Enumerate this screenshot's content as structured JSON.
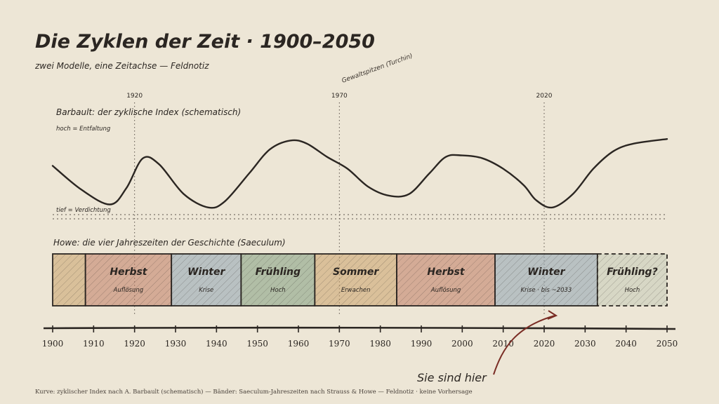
{
  "title": "Die Zyklen der Zeit · 1900–2050",
  "subtitle": "zwei Modelle, eine Zeitachse — Feldnotiz",
  "marker_note": "Gewaltspitzen (Turchin)",
  "markers": [
    1920,
    1970,
    2020
  ],
  "curve": {
    "title": "Barbault: der zyklische Index (schematisch)",
    "high_label": "hoch = Entfaltung",
    "low_label": "tief = Verdichtung"
  },
  "bands": {
    "title": "Howe: die vier Jahreszeiten der Geschichte (Saeculum)",
    "items": [
      {
        "start": 1900,
        "end": 1908,
        "name": "",
        "sub": "",
        "color": "#c9a06a",
        "dashed": false
      },
      {
        "start": 1908,
        "end": 1929,
        "name": "Herbst",
        "sub": "Auflösung",
        "color": "#c07a62",
        "dashed": false
      },
      {
        "start": 1929,
        "end": 1946,
        "name": "Winter",
        "sub": "Krise",
        "color": "#8ea3b3",
        "dashed": false
      },
      {
        "start": 1946,
        "end": 1964,
        "name": "Frühling",
        "sub": "Hoch",
        "color": "#7f9c80",
        "dashed": false
      },
      {
        "start": 1964,
        "end": 1984,
        "name": "Sommer",
        "sub": "Erwachen",
        "color": "#caa069",
        "dashed": false
      },
      {
        "start": 1984,
        "end": 2008,
        "name": "Herbst",
        "sub": "Auflösung",
        "color": "#c07a62",
        "dashed": false
      },
      {
        "start": 2008,
        "end": 2033,
        "name": "Winter",
        "sub": "Krise · bis ~2033",
        "color": "#8ea3b3",
        "dashed": false
      },
      {
        "start": 2033,
        "end": 2050,
        "name": "Frühling?",
        "sub": "Hoch",
        "color": "#9fb09a",
        "dashed": true
      }
    ]
  },
  "axis": {
    "ticks": [
      "1900",
      "1910",
      "1920",
      "1930",
      "1940",
      "1950",
      "1960",
      "1970",
      "1980",
      "1990",
      "2000",
      "2010",
      "2020",
      "2030",
      "2040",
      "2050"
    ]
  },
  "here_label": "Sie sind hier",
  "footer": "Kurve: zyklischer Index nach A. Barbault (schematisch) — Bänder: Saeculum-Jahreszeiten nach Strauss & Howe — Feldnotiz · keine Vorhersage",
  "chart_data": {
    "type": "line",
    "x": [
      1900,
      1907,
      1914,
      1918,
      1922,
      1926,
      1932,
      1938,
      1942,
      1948,
      1953,
      1958,
      1962,
      1967,
      1972,
      1977,
      1982,
      1987,
      1992,
      1996,
      2000,
      2005,
      2010,
      2015,
      2018,
      2022,
      2027,
      2032,
      2037,
      2042,
      2050
    ],
    "values": [
      60,
      28,
      8,
      30,
      70,
      62,
      22,
      4,
      12,
      50,
      82,
      94,
      90,
      72,
      56,
      32,
      20,
      22,
      50,
      72,
      74,
      70,
      56,
      34,
      14,
      4,
      22,
      56,
      80,
      90,
      96
    ],
    "ylim": [
      0,
      100
    ],
    "ylabel": ""
  },
  "colors": {
    "background": "#ede6d6",
    "ink": "#2b2622",
    "arrow": "#7a2d25"
  }
}
